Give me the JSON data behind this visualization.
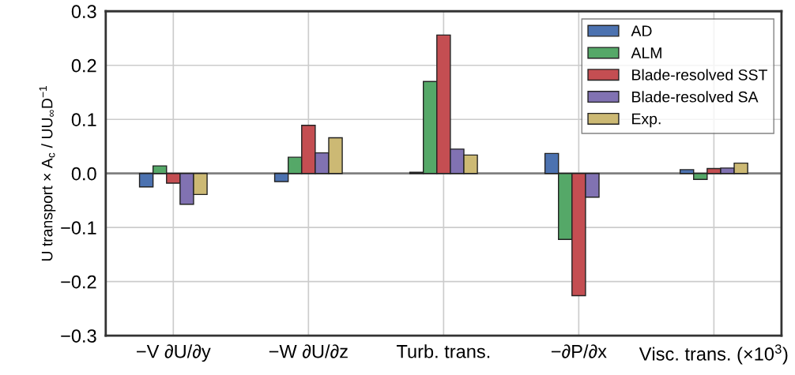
{
  "chart_data": {
    "type": "bar",
    "categories": [
      "−V ∂U/∂y",
      "−W ∂U/∂z",
      "Turb. trans.",
      "−∂P/∂x",
      "Visc. trans. (×10$^{3}$)"
    ],
    "ylabel": "U transport × A$_{c}$ / UU$_{∞}$D$^{−1}$",
    "series": [
      {
        "name": "AD",
        "color": "#4c72b0",
        "values": [
          -0.025,
          -0.015,
          0.002,
          0.037,
          0.007
        ]
      },
      {
        "name": "ALM",
        "color": "#55a868",
        "values": [
          0.014,
          0.03,
          0.17,
          -0.122,
          -0.011
        ]
      },
      {
        "name": "Blade-resolved SST",
        "color": "#c44e52",
        "values": [
          -0.018,
          0.089,
          0.256,
          -0.226,
          0.009
        ]
      },
      {
        "name": "Blade-resolved SA",
        "color": "#8172b2",
        "values": [
          -0.057,
          0.038,
          0.045,
          -0.044,
          0.01
        ]
      },
      {
        "name": "Exp.",
        "color": "#ccb974",
        "values": [
          -0.039,
          0.066,
          0.034,
          null,
          0.019
        ]
      }
    ],
    "ylim": [
      -0.3,
      0.3
    ],
    "yticks": [
      {
        "value": -0.3,
        "label": "−0.3"
      },
      {
        "value": -0.2,
        "label": "−0.2"
      },
      {
        "value": -0.1,
        "label": "−0.1"
      },
      {
        "value": 0,
        "label": "0.0"
      },
      0.1,
      0.2,
      0.3
    ],
    "ref_lines": [
      {
        "axis": "y",
        "value": 0,
        "color": "#808080"
      }
    ],
    "grid": true,
    "legend": "top right"
  }
}
